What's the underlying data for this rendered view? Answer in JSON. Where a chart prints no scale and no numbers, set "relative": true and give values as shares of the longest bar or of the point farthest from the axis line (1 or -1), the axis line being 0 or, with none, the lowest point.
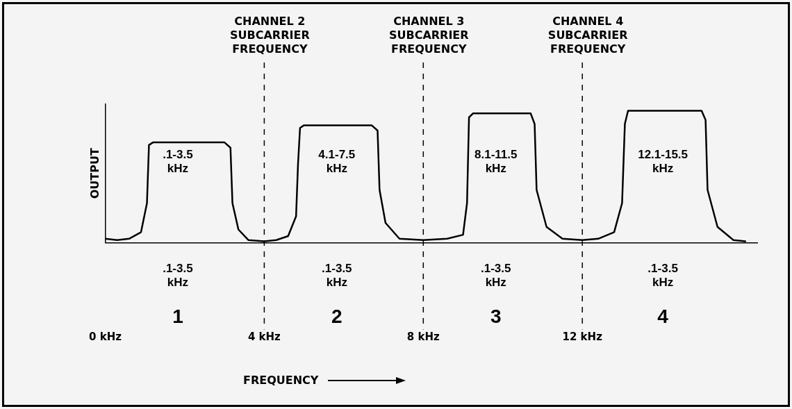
{
  "chart_data": {
    "type": "line",
    "relative": true,
    "xlabel": "FREQUENCY",
    "ylabel": "OUTPUT",
    "marker": "none",
    "grid": false,
    "legend": false,
    "xlim": [
      0,
      16.4
    ],
    "xticks": [
      {
        "value": 0,
        "label": "0 kHz"
      },
      {
        "value": 4,
        "label": "4 kHz"
      },
      {
        "value": 8,
        "label": "8 kHz"
      },
      {
        "value": 12,
        "label": "12 kHz"
      }
    ],
    "series": [
      {
        "color": "#000000",
        "x": [
          0,
          0.3,
          0.6,
          0.9,
          1.05,
          1.1,
          1.2,
          3.0,
          3.15,
          3.2,
          3.35,
          3.6,
          4.0,
          4.3,
          4.6,
          4.8,
          4.85,
          4.9,
          5.0,
          6.7,
          6.85,
          6.9,
          7.05,
          7.4,
          8.0,
          8.6,
          9.0,
          9.1,
          9.15,
          9.25,
          10.7,
          10.8,
          10.85,
          11.1,
          11.5,
          12.0,
          12.4,
          12.8,
          13.0,
          13.07,
          13.15,
          15.0,
          15.1,
          15.15,
          15.4,
          15.8,
          16.1
        ],
        "values": [
          0.03,
          0.02,
          0.03,
          0.08,
          0.3,
          0.74,
          0.76,
          0.76,
          0.72,
          0.3,
          0.1,
          0.02,
          0.01,
          0.02,
          0.05,
          0.2,
          0.6,
          0.87,
          0.89,
          0.89,
          0.85,
          0.4,
          0.15,
          0.03,
          0.02,
          0.03,
          0.06,
          0.3,
          0.95,
          0.98,
          0.98,
          0.9,
          0.4,
          0.12,
          0.03,
          0.02,
          0.03,
          0.08,
          0.3,
          0.9,
          1.0,
          1.0,
          0.93,
          0.4,
          0.12,
          0.02,
          0.01
        ]
      }
    ],
    "ref_lines": [
      {
        "axis": "x",
        "value": 4,
        "label": "CHANNEL 2\nSUBCARRIER\nFREQUENCY",
        "color": "#000000",
        "line_style": "dashed"
      },
      {
        "axis": "x",
        "value": 8,
        "label": "CHANNEL 3\nSUBCARRIER\nFREQUENCY",
        "color": "#000000",
        "line_style": "dashed"
      },
      {
        "axis": "x",
        "value": 12,
        "label": "CHANNEL 4\nSUBCARRIER\nFREQUENCY",
        "color": "#000000",
        "line_style": "dashed"
      }
    ],
    "annotations": [
      ".1-3.5\nkHz",
      "4.1-7.5\nkHz",
      "8.1-11.5\nkHz",
      "12.1-15.5\nkHz",
      ".1-3.5\nkHz",
      ".1-3.5\nkHz",
      ".1-3.5\nkHz",
      ".1-3.5\nkHz",
      "1",
      "2",
      "3",
      "4"
    ]
  }
}
